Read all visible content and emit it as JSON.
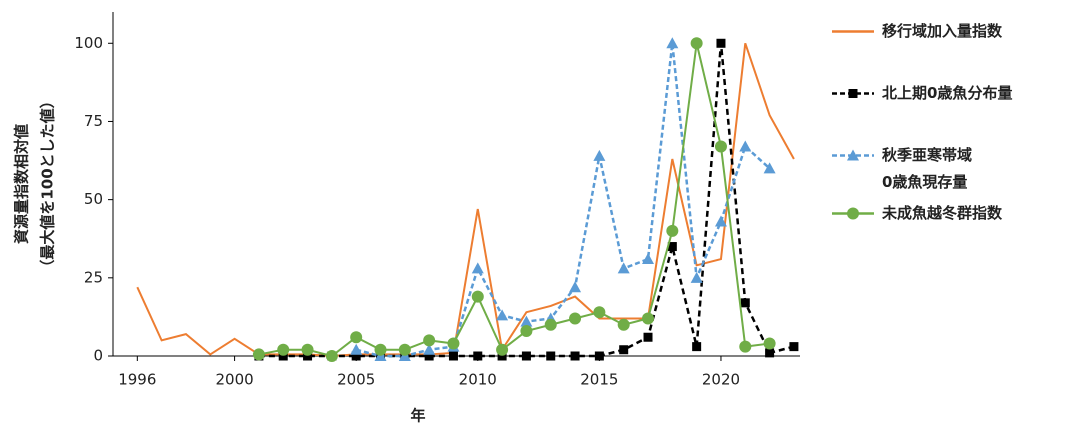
{
  "chart_data": {
    "type": "line",
    "xlabel": "年",
    "ylabel": [
      "資源量指数相対値",
      "（最大値を100とした値）"
    ],
    "x": [
      1996,
      1997,
      1998,
      1999,
      2000,
      2001,
      2002,
      2003,
      2004,
      2005,
      2006,
      2007,
      2008,
      2009,
      2010,
      2011,
      2012,
      2013,
      2014,
      2015,
      2016,
      2017,
      2018,
      2019,
      2020,
      2021,
      2022,
      2023
    ],
    "xlim": [
      1995,
      2023.25
    ],
    "xticks": [
      1996,
      2000,
      2005,
      2010,
      2015,
      2020
    ],
    "ylim": [
      0,
      110
    ],
    "yticks": [
      0,
      25,
      50,
      75,
      100
    ],
    "grid": false,
    "legend": "right",
    "series": [
      {
        "name": "移行域加入量指数",
        "color": "#ed7d31",
        "linestyle": "solid",
        "marker": "none",
        "values": [
          22,
          5,
          7,
          0.5,
          5.5,
          0.5,
          0.5,
          0.5,
          0,
          0.5,
          0.5,
          0.5,
          0.5,
          1,
          47,
          2,
          14,
          16,
          19,
          12,
          12,
          12,
          63,
          29,
          31,
          100,
          77,
          63
        ]
      },
      {
        "name": "北上期0歳魚分布量",
        "color": "#000000",
        "linestyle": "dashed",
        "marker": "square",
        "values": [
          null,
          null,
          null,
          null,
          null,
          0,
          0,
          0,
          0,
          0,
          0,
          0,
          0,
          0,
          0,
          0,
          0,
          0,
          0,
          0,
          2,
          6,
          35,
          3,
          100,
          17,
          1,
          3
        ]
      },
      {
        "name": "秋季亜寒帯域\n0歳魚現存量",
        "color": "#5b9bd5",
        "linestyle": "dashed",
        "marker": "triangle",
        "values": [
          null,
          null,
          null,
          null,
          null,
          null,
          null,
          null,
          null,
          2,
          0,
          0,
          2,
          3,
          28,
          13,
          11,
          12,
          22,
          64,
          28,
          31,
          100,
          25,
          43,
          67,
          60,
          null
        ]
      },
      {
        "name": "未成魚越冬群指数",
        "color": "#70ad47",
        "linestyle": "solid",
        "marker": "circle",
        "values": [
          null,
          null,
          null,
          null,
          null,
          0.5,
          2,
          2,
          0,
          6,
          2,
          2,
          5,
          4,
          19,
          2,
          8,
          10,
          12,
          14,
          10,
          12,
          40,
          100,
          67,
          3,
          4,
          null
        ]
      }
    ]
  }
}
